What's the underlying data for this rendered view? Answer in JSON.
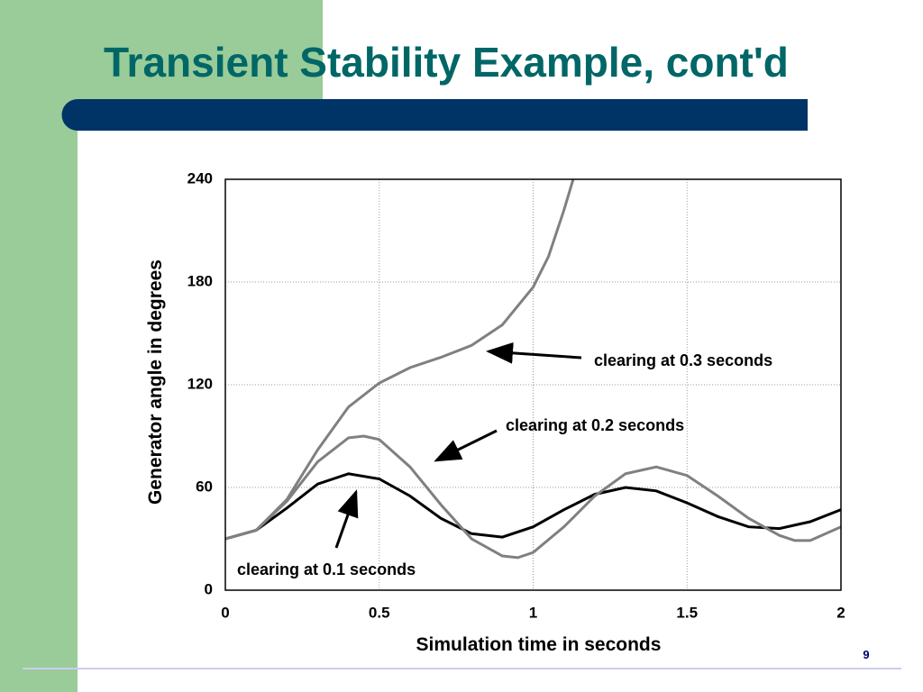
{
  "slide": {
    "title": "Transient Stability Example, cont'd",
    "page_number": "9"
  },
  "chart_data": {
    "type": "line",
    "xlabel": "Simulation time in seconds",
    "ylabel": "Generator angle in degrees",
    "xlim": [
      0,
      2
    ],
    "xticks": [
      0,
      0.5,
      1,
      1.5,
      2
    ],
    "ylim": [
      0,
      240
    ],
    "yticks": [
      0,
      60,
      120,
      180,
      240
    ],
    "grid": true,
    "series": [
      {
        "name": "clearing at 0.1 seconds",
        "color": "#000000",
        "x": [
          0,
          0.1,
          0.2,
          0.3,
          0.4,
          0.5,
          0.6,
          0.7,
          0.8,
          0.9,
          1.0,
          1.1,
          1.2,
          1.3,
          1.4,
          1.5,
          1.6,
          1.7,
          1.8,
          1.9,
          2.0
        ],
        "values": [
          30,
          35,
          48,
          62,
          68,
          65,
          55,
          42,
          33,
          31,
          37,
          47,
          56,
          60,
          58,
          51,
          43,
          37,
          36,
          40,
          47
        ]
      },
      {
        "name": "clearing at 0.2 seconds",
        "color": "#808080",
        "x": [
          0,
          0.1,
          0.2,
          0.3,
          0.4,
          0.45,
          0.5,
          0.6,
          0.7,
          0.8,
          0.9,
          0.95,
          1.0,
          1.1,
          1.2,
          1.3,
          1.4,
          1.5,
          1.6,
          1.7,
          1.8,
          1.85,
          1.9,
          2.0
        ],
        "values": [
          30,
          35,
          52,
          75,
          89,
          90,
          88,
          72,
          50,
          30,
          20,
          19,
          22,
          37,
          55,
          68,
          72,
          67,
          55,
          42,
          32,
          29,
          29,
          37
        ]
      },
      {
        "name": "clearing at 0.3 seconds",
        "color": "#808080",
        "x": [
          0,
          0.1,
          0.2,
          0.3,
          0.4,
          0.5,
          0.6,
          0.7,
          0.8,
          0.9,
          1.0,
          1.05,
          1.1,
          1.13
        ],
        "values": [
          30,
          35,
          53,
          82,
          107,
          121,
          130,
          136,
          143,
          155,
          177,
          195,
          222,
          240
        ]
      }
    ]
  }
}
